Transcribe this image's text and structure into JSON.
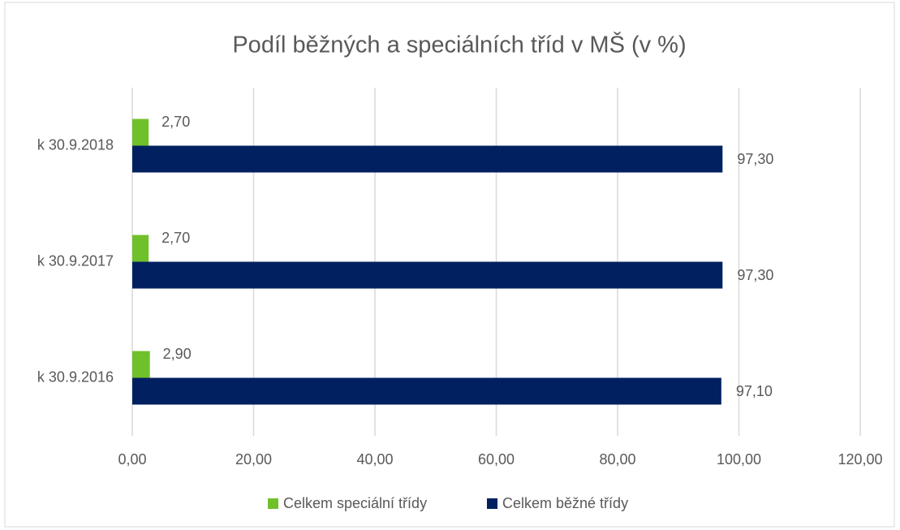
{
  "chart_data": {
    "type": "bar",
    "orientation": "horizontal",
    "title": "Podíl běžných a speciálních tříd v MŠ (v %)",
    "categories": [
      "k 30.9.2016",
      "k 30.9.2017",
      "k 30.9.2018"
    ],
    "series": [
      {
        "name": "Celkem speciální třídy",
        "color": "#70c02c",
        "values": [
          2.9,
          2.7,
          2.7
        ],
        "value_labels": [
          "2,90",
          "2,70",
          "2,70"
        ]
      },
      {
        "name": "Celkem běžné třídy",
        "color": "#002060",
        "values": [
          97.1,
          97.3,
          97.3
        ],
        "value_labels": [
          "97,10",
          "97,30",
          "97,30"
        ]
      }
    ],
    "xlim": [
      0,
      120
    ],
    "xticks": [
      {
        "value": 0,
        "label": "0,00"
      },
      {
        "value": 20,
        "label": "20,00"
      },
      {
        "value": 40,
        "label": "40,00"
      },
      {
        "value": 60,
        "label": "60,00"
      },
      {
        "value": 80,
        "label": "80,00"
      },
      {
        "value": 100,
        "label": "100,00"
      },
      {
        "value": 120,
        "label": "120,00"
      }
    ],
    "grid": true,
    "legend": "bottom"
  }
}
